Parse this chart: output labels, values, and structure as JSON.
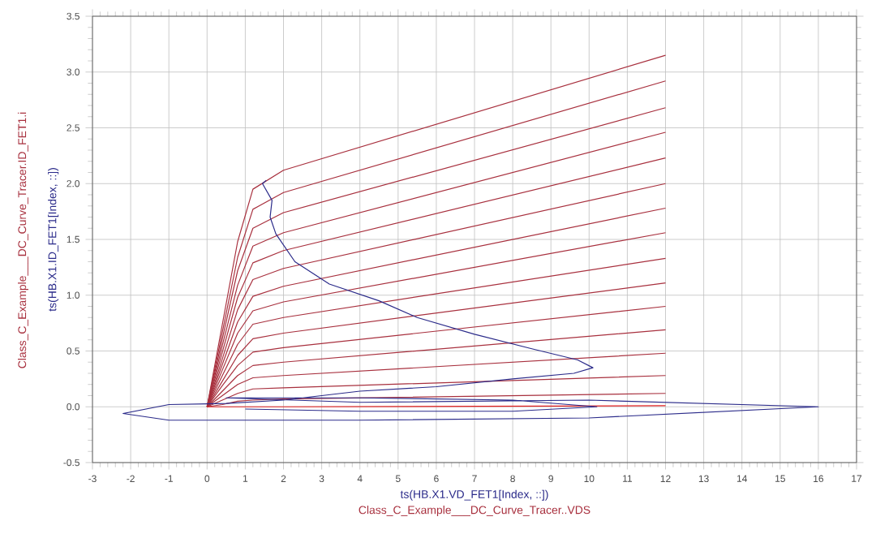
{
  "chart_data": {
    "type": "line",
    "xlabel": "ts(HB.X1.VD_FET1[Index, ::])",
    "ylabel": "ts(HB.X1.ID_FET1[Index, ::])",
    "annotations": [
      "Class_C_Example___DC_Curve_Tracer..VDS",
      "Class_C_Example___DC_Curve_Tracer.ID_FET1.i"
    ],
    "x": [
      0,
      0.4,
      0.8,
      1.2,
      2,
      12
    ],
    "xlim": [
      -3,
      17
    ],
    "xticks": [
      -3,
      -2,
      -1,
      0,
      1,
      2,
      3,
      4,
      5,
      6,
      7,
      8,
      9,
      10,
      11,
      12,
      13,
      14,
      15,
      16,
      17
    ],
    "ylim": [
      -0.5,
      3.5
    ],
    "yticks": [
      {
        "value": -0.5,
        "label": "-0.5"
      },
      {
        "value": 0,
        "label": "0.0"
      },
      {
        "value": 0.5,
        "label": "0.5"
      },
      {
        "value": 1,
        "label": "1.0"
      },
      {
        "value": 1.5,
        "label": "1.5"
      },
      {
        "value": 2,
        "label": "2.0"
      },
      {
        "value": 2.5,
        "label": "2.5"
      },
      {
        "value": 3,
        "label": "3.0"
      },
      {
        "value": 3.5,
        "label": "3.5"
      }
    ],
    "grid": true,
    "marker": "none",
    "line_style": "solid",
    "series": [
      {
        "color": "#a8303e",
        "values": [
          0,
          0.74,
          1.48,
          1.95,
          2.12,
          3.15
        ]
      },
      {
        "color": "#a8303e",
        "values": [
          0,
          0.67,
          1.34,
          1.77,
          1.92,
          2.92
        ]
      },
      {
        "color": "#a8303e",
        "values": [
          0,
          0.61,
          1.22,
          1.6,
          1.74,
          2.68
        ]
      },
      {
        "color": "#a8303e",
        "values": [
          0,
          0.55,
          1.09,
          1.44,
          1.56,
          2.46
        ]
      },
      {
        "color": "#a8303e",
        "values": [
          0,
          0.49,
          0.98,
          1.29,
          1.4,
          2.23
        ]
      },
      {
        "color": "#a8303e",
        "values": [
          0,
          0.43,
          0.87,
          1.14,
          1.24,
          2.0
        ]
      },
      {
        "color": "#a8303e",
        "values": [
          0,
          0.38,
          0.76,
          0.99,
          1.08,
          1.78
        ]
      },
      {
        "color": "#a8303e",
        "values": [
          0,
          0.33,
          0.66,
          0.86,
          0.94,
          1.56
        ]
      },
      {
        "color": "#a8303e",
        "values": [
          0,
          0.28,
          0.56,
          0.74,
          0.8,
          1.33
        ]
      },
      {
        "color": "#a8303e",
        "values": [
          0,
          0.23,
          0.46,
          0.61,
          0.66,
          1.11
        ]
      },
      {
        "color": "#a8303e",
        "values": [
          0,
          0.19,
          0.37,
          0.49,
          0.53,
          0.9
        ]
      },
      {
        "color": "#a8303e",
        "values": [
          0,
          0.14,
          0.28,
          0.37,
          0.4,
          0.69
        ]
      },
      {
        "color": "#a8303e",
        "values": [
          0,
          0.1,
          0.2,
          0.26,
          0.28,
          0.48
        ]
      },
      {
        "color": "#a8303e",
        "values": [
          0,
          0.06,
          0.12,
          0.16,
          0.17,
          0.28
        ]
      },
      {
        "color": "#a8303e",
        "values": [
          0,
          0.02,
          0.05,
          0.06,
          0.07,
          0.12
        ]
      },
      {
        "color": "#e02020",
        "values": [
          0,
          0,
          0,
          0,
          0,
          0.01
        ]
      },
      {
        "color": "#2b2b8a",
        "x": [
          1.55,
          1.45,
          1.7,
          1.65,
          1.8,
          2.3,
          3.2,
          4.5,
          5.5,
          7,
          8.5,
          9.7,
          10.1,
          9.6,
          8,
          6,
          4,
          2,
          0.5,
          -1,
          -2.2,
          -1,
          4,
          10,
          16,
          10,
          4,
          0.5,
          4,
          8,
          10.2,
          8,
          4,
          1
        ],
        "values": [
          2.03,
          2.0,
          1.85,
          1.7,
          1.55,
          1.3,
          1.1,
          0.95,
          0.8,
          0.65,
          0.52,
          0.42,
          0.35,
          0.3,
          0.25,
          0.18,
          0.14,
          0.06,
          0.03,
          0.02,
          -0.06,
          -0.12,
          -0.12,
          -0.1,
          0,
          0.06,
          0.04,
          0.08,
          0.08,
          0.06,
          0,
          -0.04,
          -0.04,
          -0.02
        ]
      }
    ]
  }
}
